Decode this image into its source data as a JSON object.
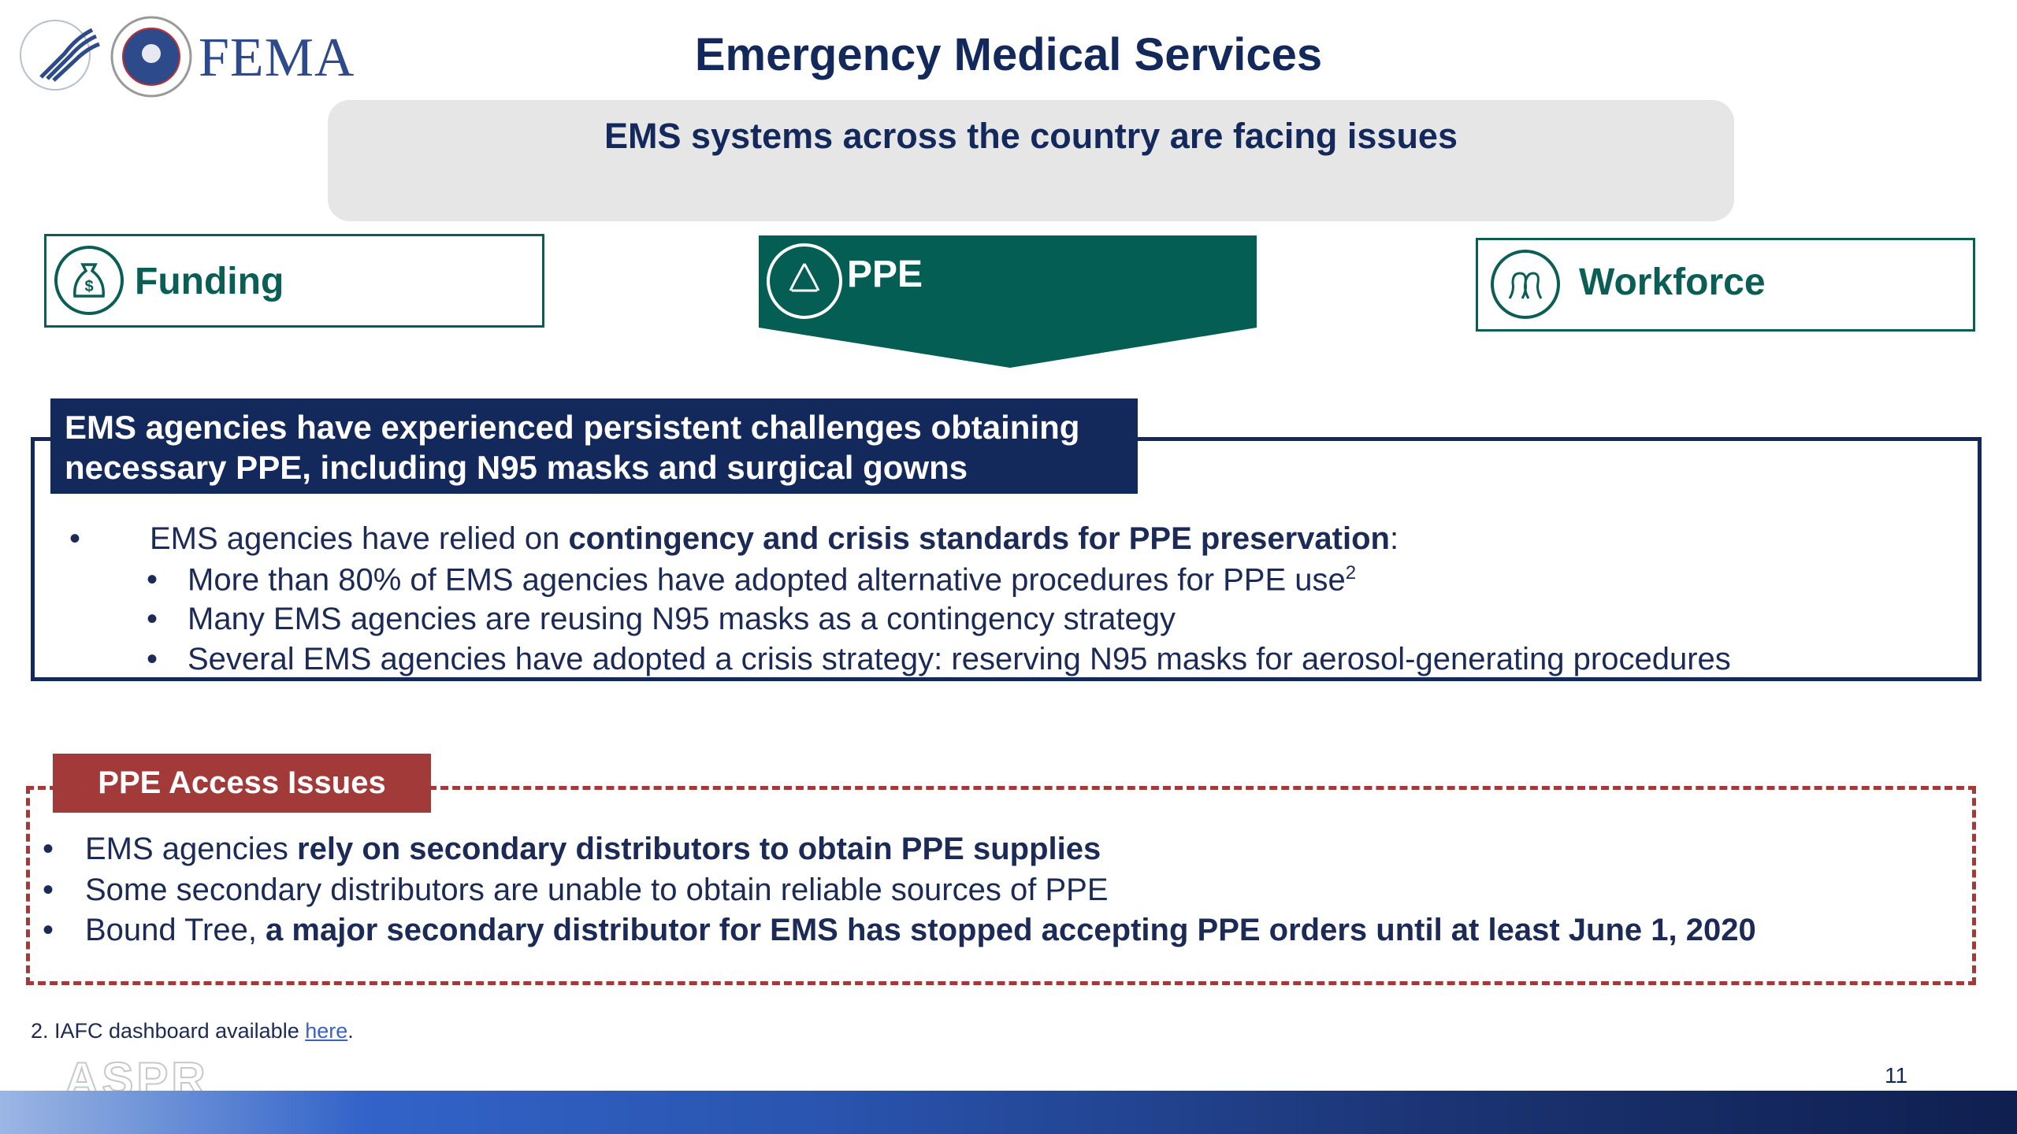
{
  "header": {
    "logo_text": "FEMA",
    "title": "Emergency Medical Services"
  },
  "banner": {
    "text": "EMS systems across the country are facing issues"
  },
  "categories": [
    {
      "label": "Funding",
      "icon": "money-bag-icon",
      "active": false
    },
    {
      "label": "PPE",
      "icon": "recycle-icon",
      "active": true
    },
    {
      "label": "Workforce",
      "icon": "people-icon",
      "active": false
    }
  ],
  "main_section": {
    "heading_line1": "EMS agencies have experienced persistent challenges obtaining",
    "heading_line2": "necessary PPE, including N95 masks and surgical gowns",
    "bullet": {
      "pre": "EMS agencies have relied on ",
      "bold": "contingency and crisis standards for PPE preservation",
      "post": ":"
    },
    "subbullets": [
      {
        "text": "More than 80% of EMS agencies have adopted alternative procedures for PPE use",
        "sup": "2"
      },
      {
        "text": "Many EMS agencies are reusing N95 masks as a contingency strategy"
      },
      {
        "text": "Several EMS agencies have adopted a crisis strategy: reserving N95 masks for aerosol-generating procedures"
      }
    ]
  },
  "access_issues": {
    "heading": "PPE Access Issues",
    "bullets": [
      {
        "pre": "EMS agencies ",
        "bold": "rely on secondary distributors to obtain PPE supplies"
      },
      {
        "pre": "Some secondary distributors are unable to obtain reliable sources of PPE",
        "bold": ""
      },
      {
        "pre": "Bound Tree, ",
        "bold": "a major secondary distributor for EMS has stopped accepting PPE orders until at least June 1, 2020"
      }
    ]
  },
  "footer": {
    "footnote_text": "2. IAFC dashboard available ",
    "footnote_link": "here",
    "footnote_end": ".",
    "watermark": "ASPR",
    "page_number": "11"
  },
  "colors": {
    "navy": "#13295c",
    "teal": "#0b5e55",
    "red": "#a33a3a",
    "banner_gray": "#e6e6e6"
  },
  "bullet_char": "•"
}
